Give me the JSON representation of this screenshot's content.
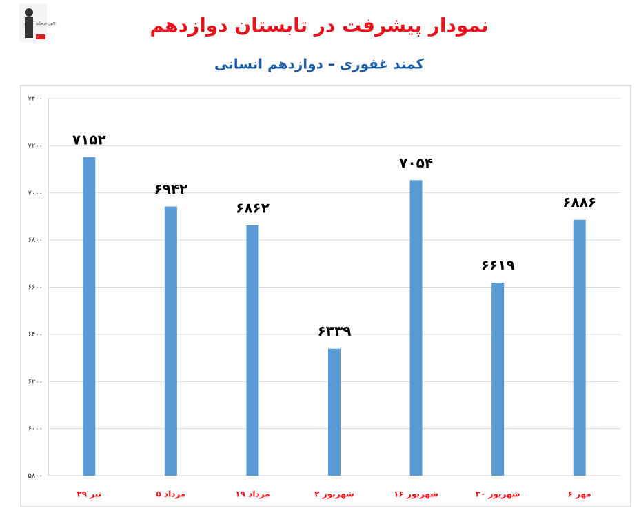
{
  "logo": {
    "text": "کانون فرهنگی آموزش"
  },
  "chart_data": {
    "type": "bar",
    "title": "نمودار پیشرفت در تابستان دوازدهم",
    "subtitle": "کمند غفوری – دوازدهم انسانی",
    "categories": [
      "۲۹ تیر",
      "۵ مرداد",
      "۱۹ مرداد",
      "۲ شهریور",
      "۱۶ شهریور",
      "۳۰ شهریور",
      "۶ مهر"
    ],
    "values": [
      7152,
      6942,
      6862,
      6339,
      7054,
      6619,
      6886
    ],
    "value_labels": [
      "۷۱۵۲",
      "۶۹۴۲",
      "۶۸۶۲",
      "۶۳۳۹",
      "۷۰۵۴",
      "۶۶۱۹",
      "۶۸۸۶"
    ],
    "color": "#5b9bd5",
    "ylim": [
      5800,
      7400
    ],
    "yticks": [
      {
        "value": 5800,
        "label": "۵۸۰۰"
      },
      {
        "value": 6000,
        "label": "۶۰۰۰"
      },
      {
        "value": 6200,
        "label": "۶۲۰۰"
      },
      {
        "value": 6400,
        "label": "۶۴۰۰"
      },
      {
        "value": 6600,
        "label": "۶۶۰۰"
      },
      {
        "value": 6800,
        "label": "۶۸۰۰"
      },
      {
        "value": 7000,
        "label": "۷۰۰۰"
      },
      {
        "value": 7200,
        "label": "۷۲۰۰"
      },
      {
        "value": 7400,
        "label": "۷۴۰۰"
      }
    ],
    "grid": true
  }
}
